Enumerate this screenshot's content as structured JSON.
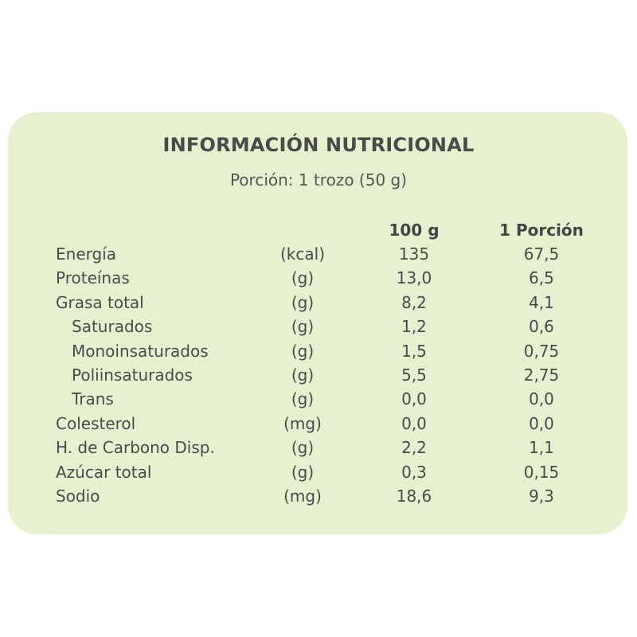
{
  "title": "INFORMACIÓN NUTRICIONAL",
  "subtitle": "Porción: 1 trozo (50 g)",
  "columns": {
    "per100": "100 g",
    "portion": "1 Porción"
  },
  "rows": [
    {
      "label": "Energía",
      "unit": "(kcal)",
      "per100": "135",
      "portion": "67,5",
      "indent": false
    },
    {
      "label": "Proteínas",
      "unit": "(g)",
      "per100": "13,0",
      "portion": "6,5",
      "indent": false
    },
    {
      "label": "Grasa total",
      "unit": "(g)",
      "per100": "8,2",
      "portion": "4,1",
      "indent": false
    },
    {
      "label": "Saturados",
      "unit": "(g)",
      "per100": "1,2",
      "portion": "0,6",
      "indent": true
    },
    {
      "label": "Monoinsaturados",
      "unit": "(g)",
      "per100": "1,5",
      "portion": "0,75",
      "indent": true
    },
    {
      "label": "Poliinsaturados",
      "unit": "(g)",
      "per100": "5,5",
      "portion": "2,75",
      "indent": true
    },
    {
      "label": "Trans",
      "unit": "(g)",
      "per100": "0,0",
      "portion": "0,0",
      "indent": true
    },
    {
      "label": "Colesterol",
      "unit": "(mg)",
      "per100": "0,0",
      "portion": "0,0",
      "indent": false
    },
    {
      "label": "H. de Carbono Disp.",
      "unit": "(g)",
      "per100": "2,2",
      "portion": "1,1",
      "indent": false
    },
    {
      "label": "Azúcar total",
      "unit": "(g)",
      "per100": "0,3",
      "portion": "0,15",
      "indent": false
    },
    {
      "label": "Sodio",
      "unit": "(mg)",
      "per100": "18,6",
      "portion": "9,3",
      "indent": false
    }
  ],
  "colors": {
    "card_background": "#e6f2cf",
    "text": "#4a4a4a"
  }
}
